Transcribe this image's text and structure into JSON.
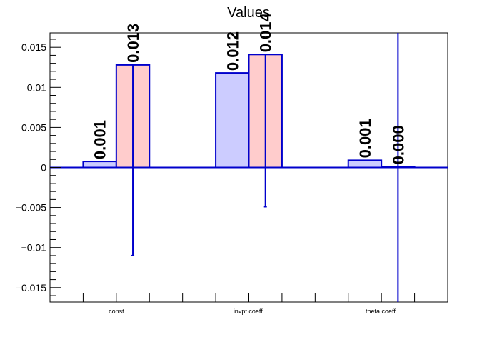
{
  "chart_data": {
    "type": "bar",
    "title": "Values",
    "xlabel": "",
    "ylabel": "",
    "categories": [
      "const",
      "invpt coeff.",
      "theta coeff."
    ],
    "ylim": [
      -0.0168,
      0.0168
    ],
    "yticks": [
      -0.015,
      -0.01,
      -0.005,
      0,
      0.005,
      0.01,
      0.015
    ],
    "ytick_labels": [
      "−0.015",
      "−0.01",
      "−0.005",
      "0",
      "0.005",
      "0.01",
      "0.015"
    ],
    "grid": false,
    "colors": {
      "axis": "#000000",
      "series_stroke": "#0000cc",
      "errorbar": "#0000cc",
      "series_a_fill": "#ccccff",
      "series_b_fill": "#ffcccc",
      "zero_line": "#0000cc"
    },
    "series": [
      {
        "values": [
          0.00075,
          0.0118,
          0.0009
        ],
        "labels": [
          "0.001",
          "0.012",
          "0.001"
        ]
      },
      {
        "values": [
          0.0128,
          0.0141,
          0.0001
        ],
        "err_low": [
          -0.011,
          -0.0049,
          -0.0168
        ],
        "err_high": [
          0.0128,
          0.0141,
          0.0168
        ],
        "labels": [
          "0.013",
          "0.014",
          "0.000"
        ]
      }
    ]
  }
}
